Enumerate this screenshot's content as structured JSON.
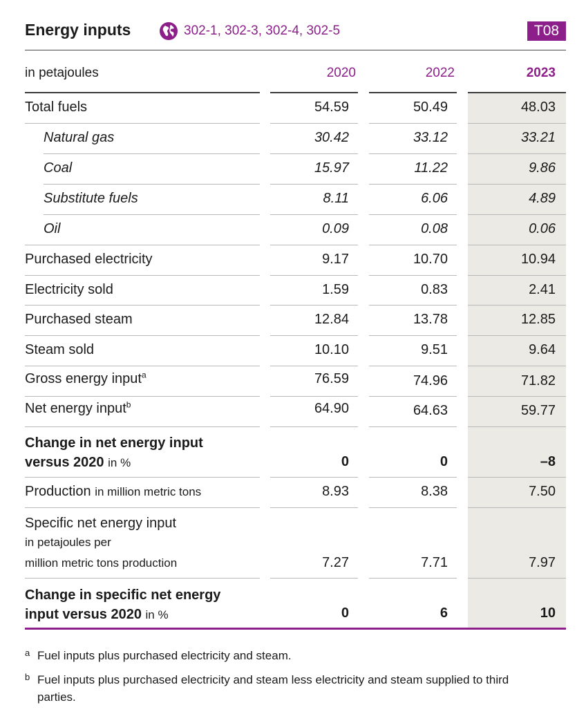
{
  "header": {
    "title": "Energy inputs",
    "gri_refs": "302-1, 302-3, 302-4, 302-5",
    "table_tag": "T08",
    "accent_color": "#8c1f8a"
  },
  "columns": {
    "unit_label": "in petajoules",
    "years": [
      "2020",
      "2022",
      "2023"
    ]
  },
  "rows": [
    {
      "label": "Total fuels",
      "values": [
        "54.59",
        "50.49",
        "48.03"
      ]
    },
    {
      "label": "Natural gas",
      "values": [
        "30.42",
        "33.12",
        "33.21"
      ]
    },
    {
      "label": "Coal",
      "values": [
        "15.97",
        "11.22",
        "9.86"
      ]
    },
    {
      "label": "Substitute fuels",
      "values": [
        "8.11",
        "6.06",
        "4.89"
      ]
    },
    {
      "label": "Oil",
      "values": [
        "0.09",
        "0.08",
        "0.06"
      ]
    },
    {
      "label": "Purchased electricity",
      "values": [
        "9.17",
        "10.70",
        "10.94"
      ]
    },
    {
      "label": "Electricity sold",
      "values": [
        "1.59",
        "0.83",
        "2.41"
      ]
    },
    {
      "label": "Purchased steam",
      "values": [
        "12.84",
        "13.78",
        "12.85"
      ]
    },
    {
      "label": "Steam sold",
      "values": [
        "10.10",
        "9.51",
        "9.64"
      ]
    },
    {
      "label": "Gross energy input",
      "sup": "a",
      "values": [
        "76.59",
        "74.96",
        "71.82"
      ]
    },
    {
      "label": "Net energy input",
      "sup": "b",
      "values": [
        "64.90",
        "64.63",
        "59.77"
      ]
    },
    {
      "label_line1": "Change in net energy input",
      "label_line2": "versus 2020",
      "unit": "in %",
      "values": [
        "0",
        "0",
        "–8"
      ]
    },
    {
      "label": "Production",
      "unit": "in million metric tons",
      "values": [
        "8.93",
        "8.38",
        "7.50"
      ]
    },
    {
      "label": "Specific net energy input",
      "unit_line1": "in petajoules per",
      "unit_line2": "million metric tons production",
      "values": [
        "7.27",
        "7.71",
        "7.97"
      ]
    },
    {
      "label_line1": "Change in specific net energy",
      "label_line2": "input versus 2020",
      "unit": "in %",
      "values": [
        "0",
        "6",
        "10"
      ]
    }
  ],
  "footnotes": [
    {
      "mark": "a",
      "text": "Fuel inputs plus purchased electricity and steam."
    },
    {
      "mark": "b",
      "text": "Fuel inputs plus purchased electricity and steam less electricity and steam supplied to third parties."
    }
  ]
}
